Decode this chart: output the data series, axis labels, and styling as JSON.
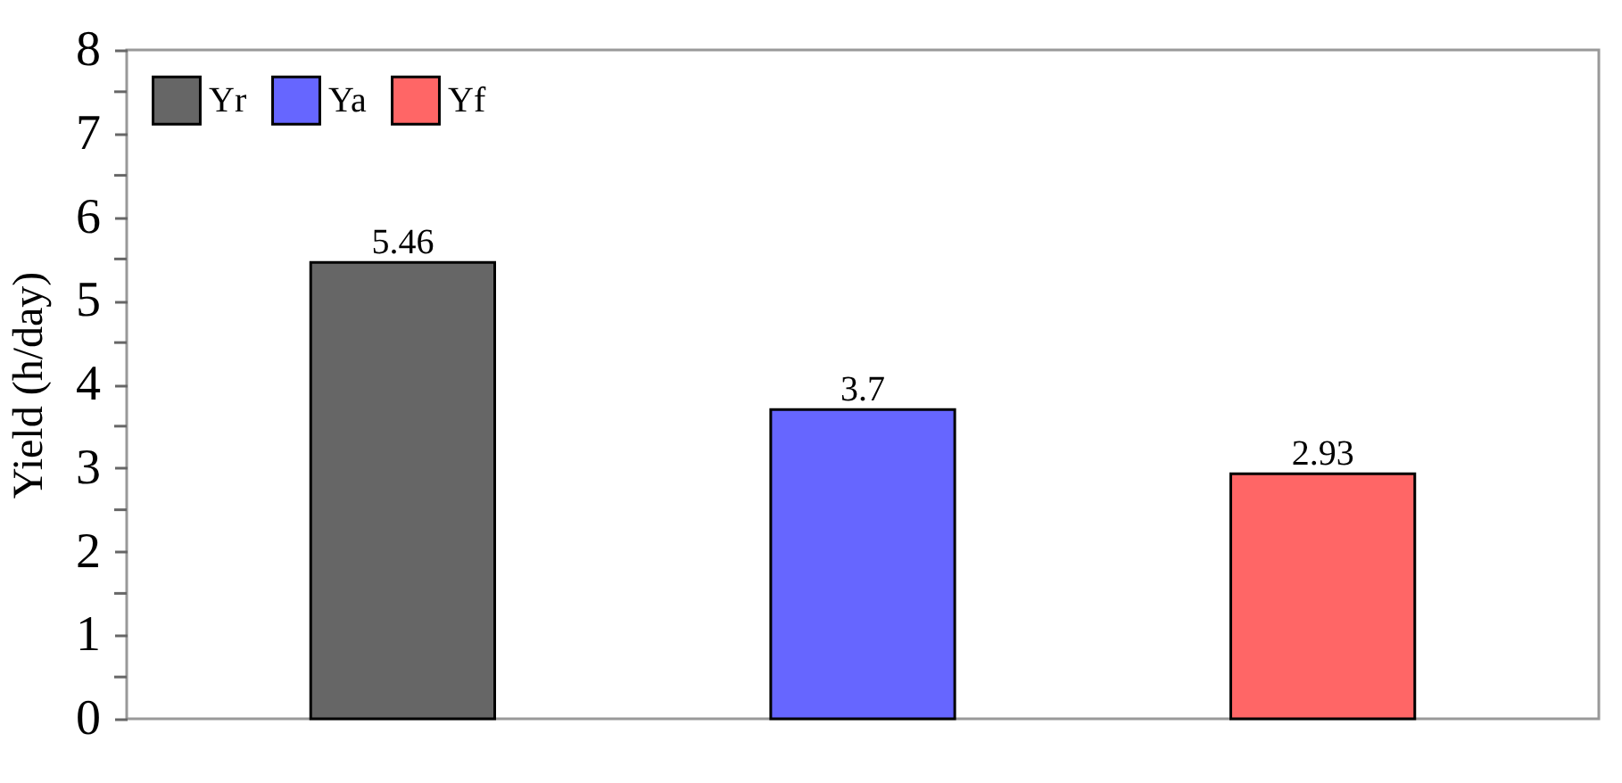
{
  "chart_data": {
    "type": "bar",
    "ylabel": "Yield (h/day)",
    "categories": [
      null,
      null,
      null
    ],
    "stacked": true,
    "series": [
      {
        "name": "Yr",
        "color": "#666666",
        "values": [
          5.46,
          null,
          null
        ]
      },
      {
        "name": "Ya",
        "color": "#6666ff",
        "values": [
          null,
          3.7,
          null
        ]
      },
      {
        "name": "Yf",
        "color": "#ff6666",
        "values": [
          null,
          null,
          2.93
        ]
      }
    ],
    "ylim": [
      0,
      8
    ],
    "yticks": [
      0,
      {
        "value": 0.5,
        "label": null
      },
      1,
      {
        "value": 1.5,
        "label": null
      },
      2,
      {
        "value": 2.5,
        "label": null
      },
      3,
      {
        "value": 3.5,
        "label": null
      },
      4,
      {
        "value": 4.5,
        "label": null
      },
      5,
      {
        "value": 5.5,
        "label": null
      },
      6,
      {
        "value": 6.5,
        "label": null
      },
      7,
      {
        "value": 7.5,
        "label": null
      },
      8
    ],
    "data_labels": true,
    "legend": "top left",
    "grid": false
  }
}
